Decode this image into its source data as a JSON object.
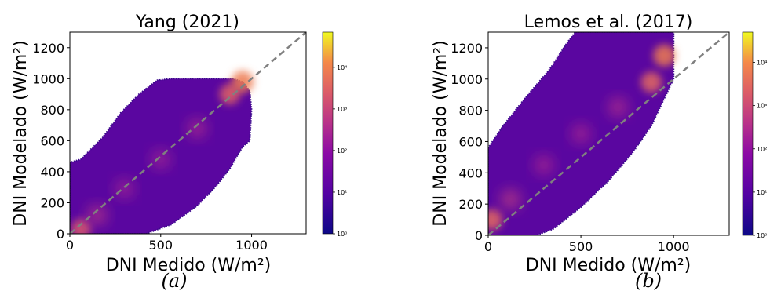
{
  "chart_data": [
    {
      "type": "heatmap",
      "title": "Yang (2021)",
      "xlabel": "DNI Medido (W/m²)",
      "ylabel": "DNI Modelado (W/m²)",
      "caption": "(a)",
      "xlim": [
        0,
        1300
      ],
      "ylim": [
        0,
        1300
      ],
      "x_ticks": [
        0,
        500,
        1000
      ],
      "y_ticks": [
        0,
        200,
        400,
        600,
        800,
        1000,
        1200
      ],
      "reference_line": {
        "x": [
          0,
          1300
        ],
        "y": [
          0,
          1300
        ],
        "style": "dashed",
        "color": "#808080"
      },
      "colorbar": {
        "scale": "log",
        "range": [
          1,
          70000
        ],
        "ticks": [
          1,
          10,
          100,
          1000,
          10000
        ],
        "tick_labels": [
          "10⁰",
          "10¹",
          "10²",
          "10³",
          "10⁴"
        ],
        "colormap": "plasma"
      },
      "density_mass": [
        {
          "x": 60,
          "y": 30,
          "count": 2000
        },
        {
          "x": 150,
          "y": 120,
          "count": 600
        },
        {
          "x": 300,
          "y": 290,
          "count": 300
        },
        {
          "x": 500,
          "y": 480,
          "count": 300
        },
        {
          "x": 700,
          "y": 680,
          "count": 400
        },
        {
          "x": 880,
          "y": 900,
          "count": 3000
        },
        {
          "x": 950,
          "y": 980,
          "count": 8000
        }
      ],
      "envelope": [
        [
          0,
          0
        ],
        [
          0,
          460
        ],
        [
          60,
          480
        ],
        [
          180,
          620
        ],
        [
          280,
          780
        ],
        [
          380,
          900
        ],
        [
          480,
          990
        ],
        [
          560,
          1000
        ],
        [
          900,
          1000
        ],
        [
          950,
          980
        ],
        [
          990,
          920
        ],
        [
          1000,
          800
        ],
        [
          990,
          600
        ],
        [
          950,
          560
        ],
        [
          880,
          420
        ],
        [
          800,
          300
        ],
        [
          700,
          180
        ],
        [
          560,
          60
        ],
        [
          420,
          0
        ]
      ]
    },
    {
      "type": "heatmap",
      "title": "Lemos et al. (2017)",
      "xlabel": "DNI Medido (W/m²)",
      "ylabel": "DNI Modelado (W/m²)",
      "caption": "(b)",
      "xlim": [
        0,
        1300
      ],
      "ylim": [
        0,
        1300
      ],
      "x_ticks": [
        0,
        500,
        1000
      ],
      "y_ticks": [
        0,
        200,
        400,
        600,
        800,
        1000,
        1200
      ],
      "reference_line": {
        "x": [
          0,
          1300
        ],
        "y": [
          0,
          1300
        ],
        "style": "dashed",
        "color": "#808080"
      },
      "colorbar": {
        "scale": "log",
        "range": [
          1,
          50000
        ],
        "ticks": [
          1,
          10,
          100,
          1000,
          10000
        ],
        "tick_labels": [
          "10⁰",
          "10¹",
          "10²",
          "10³",
          "10⁴"
        ],
        "colormap": "plasma"
      },
      "density_mass": [
        {
          "x": 20,
          "y": 100,
          "count": 3000
        },
        {
          "x": 120,
          "y": 230,
          "count": 600
        },
        {
          "x": 300,
          "y": 450,
          "count": 300
        },
        {
          "x": 500,
          "y": 650,
          "count": 300
        },
        {
          "x": 700,
          "y": 820,
          "count": 400
        },
        {
          "x": 880,
          "y": 980,
          "count": 3000
        },
        {
          "x": 950,
          "y": 1150,
          "count": 6000
        }
      ],
      "envelope": [
        [
          0,
          0
        ],
        [
          0,
          560
        ],
        [
          80,
          700
        ],
        [
          200,
          880
        ],
        [
          330,
          1060
        ],
        [
          430,
          1240
        ],
        [
          470,
          1300
        ],
        [
          1000,
          1300
        ],
        [
          1000,
          1000
        ],
        [
          960,
          900
        ],
        [
          880,
          700
        ],
        [
          780,
          530
        ],
        [
          650,
          350
        ],
        [
          500,
          180
        ],
        [
          350,
          40
        ],
        [
          260,
          0
        ]
      ]
    }
  ]
}
